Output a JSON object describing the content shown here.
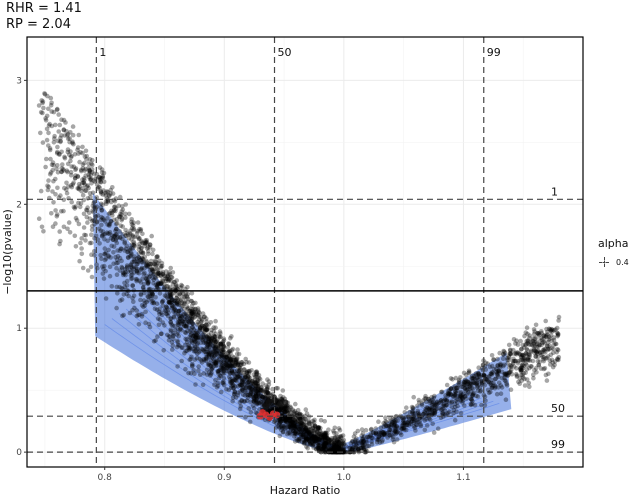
{
  "header": {
    "line1": "RHR = 1.41",
    "line2": "RP = 2.04"
  },
  "legend": {
    "title": "alpha",
    "value": "0.4"
  },
  "chart_data": {
    "type": "scatter",
    "xlabel": "Hazard Ratio",
    "ylabel": "−log10(pvalue)",
    "xlim": [
      0.735,
      1.2
    ],
    "ylim": [
      -0.12,
      3.35
    ],
    "x_ticks": [
      0.8,
      0.9,
      1.0,
      1.1
    ],
    "x_tick_labels": [
      "0.8",
      "0.9",
      "1.0",
      "1.1"
    ],
    "y_ticks": [
      0,
      1,
      2,
      3
    ],
    "y_tick_labels": [
      "0",
      "1",
      "2",
      "3"
    ],
    "grid": true,
    "horizontal_lines": [
      {
        "y": 1.301,
        "style": "solid"
      },
      {
        "y": 2.04,
        "style": "dashed",
        "label": "1"
      },
      {
        "y": 0.29,
        "style": "dashed",
        "label": "50"
      },
      {
        "y": 0.0,
        "style": "dashed",
        "label": "99"
      }
    ],
    "vertical_lines": [
      {
        "x": 0.793,
        "style": "dashed",
        "label": "1"
      },
      {
        "x": 0.942,
        "style": "dashed",
        "label": "50"
      },
      {
        "x": 1.117,
        "style": "dashed",
        "label": "99"
      }
    ],
    "point_cloud": {
      "point_color": "#000000",
      "point_alpha": 0.35,
      "left_arm": {
        "x_range": [
          0.745,
          1.0
        ],
        "upper_envelope_at_min_x": 3.2,
        "apex": [
          1.0,
          0.0
        ]
      },
      "right_arm": {
        "x_range": [
          1.0,
          1.18
        ],
        "upper_envelope_at_max_x": 1.12
      },
      "density_contours_color": "#6a8fe8"
    },
    "highlight_points": {
      "color": "#e03030",
      "values": [
        [
          0.93,
          0.29
        ],
        [
          0.935,
          0.3
        ],
        [
          0.938,
          0.28
        ],
        [
          0.941,
          0.31
        ],
        [
          0.944,
          0.3
        ],
        [
          0.932,
          0.32
        ]
      ]
    },
    "dark_highlight_points": {
      "color": "#111111",
      "values": [
        [
          0.937,
          0.4
        ],
        [
          0.942,
          0.42
        ],
        [
          0.947,
          0.39
        ],
        [
          0.951,
          0.4
        ],
        [
          0.935,
          0.37
        ]
      ]
    }
  }
}
